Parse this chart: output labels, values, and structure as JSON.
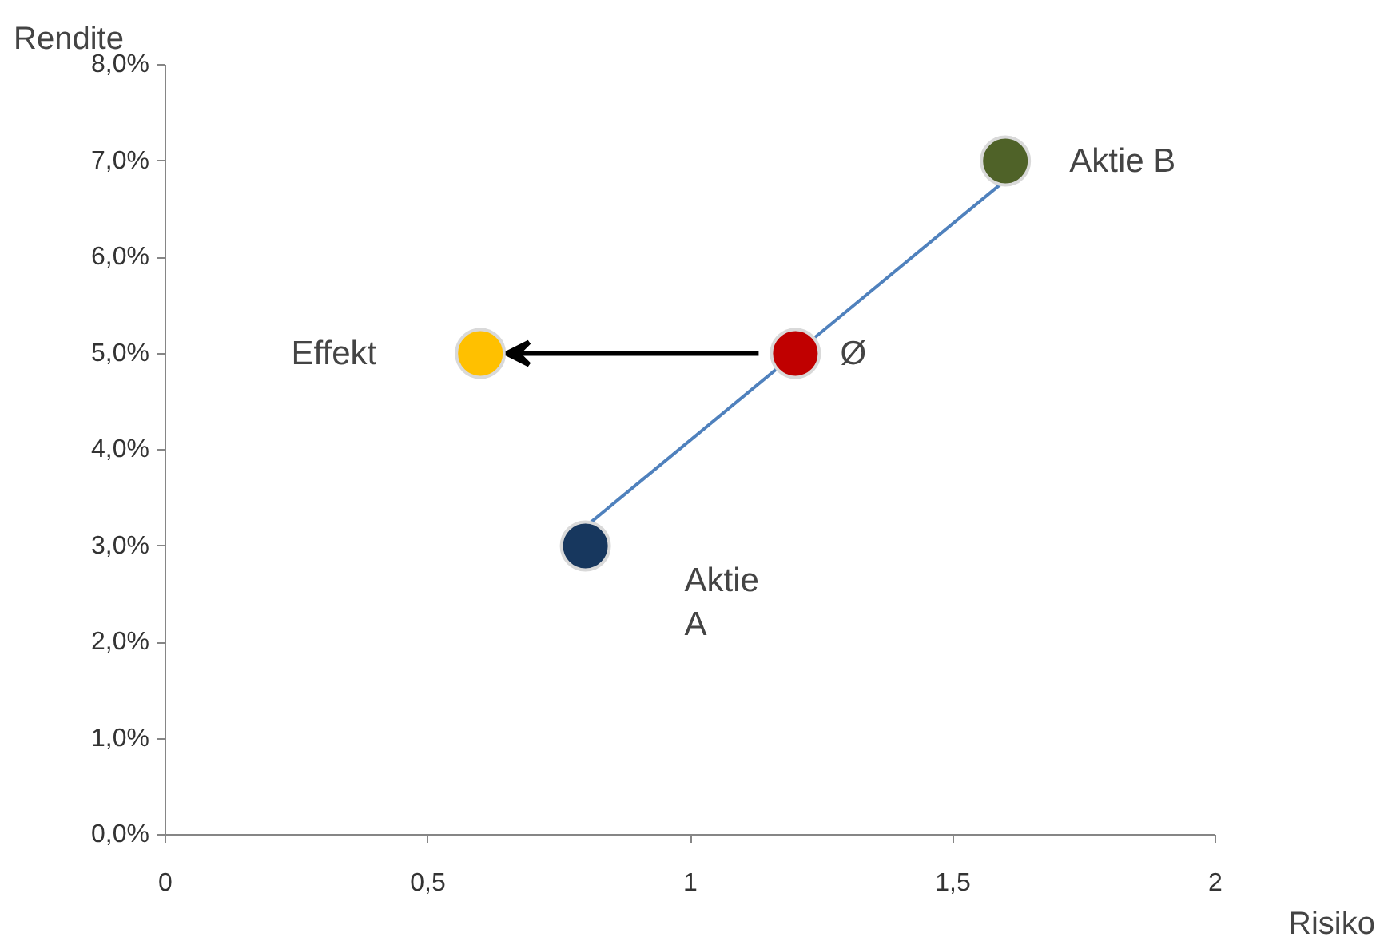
{
  "chart_data": {
    "type": "scatter",
    "xlabel": "Risiko",
    "ylabel": "Rendite",
    "xlim": [
      0,
      2
    ],
    "ylim": [
      0,
      8
    ],
    "xticks": [
      0,
      {
        "value": 0.5,
        "label": "0,5"
      },
      1,
      {
        "value": 1.5,
        "label": "1,5"
      },
      2
    ],
    "yticks": [
      {
        "value": 0,
        "label": "0,0%"
      },
      {
        "value": 1,
        "label": "1,0%"
      },
      {
        "value": 2,
        "label": "2,0%"
      },
      {
        "value": 3,
        "label": "3,0%"
      },
      {
        "value": 4,
        "label": "4,0%"
      },
      {
        "value": 5,
        "label": "5,0%"
      },
      {
        "value": 6,
        "label": "6,0%"
      },
      {
        "value": 7,
        "label": "7,0%"
      },
      {
        "value": 8,
        "label": "8,0%"
      }
    ],
    "grid": false,
    "marker": "circle",
    "series": [
      {
        "type": "line",
        "marker": "none",
        "color": "#4f81bd",
        "x": [
          0.8,
          1.6
        ],
        "values": [
          3.2,
          6.8
        ]
      },
      {
        "x": [
          0.8,
          1.6,
          1.2,
          0.6
        ],
        "values": [
          3,
          7,
          5,
          5
        ],
        "colors": [
          "#17375e",
          "#4f6228",
          "#c00000",
          "#ffc000"
        ]
      }
    ],
    "annotations": [
      {
        "text": "Aktie B",
        "x": 1.6,
        "y": 7
      },
      {
        "text": "Ø",
        "x": 1.2,
        "y": 5
      },
      "Effekt",
      {
        "text": "Aktie\nA",
        "x": 0.8,
        "y": 3
      }
    ]
  }
}
